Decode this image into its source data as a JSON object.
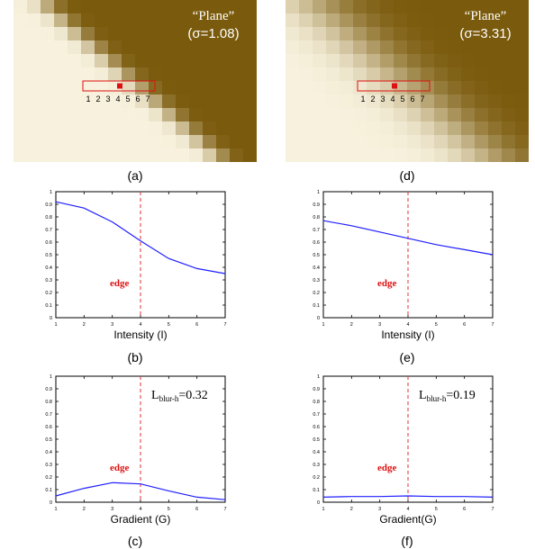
{
  "images": [
    {
      "id": "a",
      "caption": "(a)",
      "title_line1": "“Plane”",
      "title_line2": "(σ=1.08)",
      "sigma": 1.08,
      "roi_labels": [
        "1",
        "2",
        "3",
        "4",
        "5",
        "6",
        "7"
      ]
    },
    {
      "id": "d",
      "caption": "(d)",
      "title_line1": "“Plane”",
      "title_line2": "(σ=3.31)",
      "sigma": 3.31,
      "roi_labels": [
        "1",
        "2",
        "3",
        "4",
        "5",
        "6",
        "7"
      ]
    }
  ],
  "colors": {
    "dark": "#7a5a0c",
    "light": "#f7f1dd",
    "line": "#1f1fff",
    "edge_line": "#e03030",
    "roi": "#dd1111",
    "annotation": "#dd1111"
  },
  "chart_data": [
    {
      "id": "b",
      "type": "line",
      "caption": "(b)",
      "xlabel": "Intensity (I)",
      "x": [
        1,
        2,
        3,
        4,
        5,
        6,
        7
      ],
      "series": [
        {
          "values": [
            0.92,
            0.87,
            0.76,
            0.61,
            0.47,
            0.39,
            0.35
          ]
        }
      ],
      "xlim": [
        1,
        7
      ],
      "ylim": [
        0,
        1
      ],
      "xticks": [
        "1",
        "2",
        "3",
        "4",
        "5",
        "6",
        "7"
      ],
      "yticks": [
        "0",
        "0.1",
        "0.2",
        "0.3",
        "0.4",
        "0.5",
        "0.6",
        "0.7",
        "0.8",
        "0.9",
        "1"
      ],
      "edge_x": 4,
      "edge_label": "edge",
      "annotation": null
    },
    {
      "id": "e",
      "type": "line",
      "caption": "(e)",
      "xlabel": "Intensity (I)",
      "x": [
        1,
        2,
        3,
        4,
        5,
        6,
        7
      ],
      "series": [
        {
          "values": [
            0.77,
            0.73,
            0.68,
            0.63,
            0.58,
            0.54,
            0.5
          ]
        }
      ],
      "xlim": [
        1,
        7
      ],
      "ylim": [
        0,
        1
      ],
      "xticks": [
        "1",
        "2",
        "3",
        "4",
        "5",
        "6",
        "7"
      ],
      "yticks": [
        "0",
        "0.1",
        "0.2",
        "0.3",
        "0.4",
        "0.5",
        "0.6",
        "0.7",
        "0.8",
        "0.9",
        "1"
      ],
      "edge_x": 4,
      "edge_label": "edge",
      "annotation": null
    },
    {
      "id": "c",
      "type": "line",
      "caption": "(c)",
      "xlabel": "Gradient (G)",
      "x": [
        1,
        2,
        3,
        4,
        5,
        6,
        7
      ],
      "series": [
        {
          "values": [
            0.05,
            0.11,
            0.155,
            0.145,
            0.09,
            0.04,
            0.02
          ]
        }
      ],
      "xlim": [
        1,
        7
      ],
      "ylim": [
        0,
        1
      ],
      "xticks": [
        "1",
        "2",
        "3",
        "4",
        "5",
        "6",
        "7"
      ],
      "yticks": [
        "0",
        "0.1",
        "0.2",
        "0.3",
        "0.4",
        "0.5",
        "0.6",
        "0.7",
        "0.8",
        "0.9",
        "1"
      ],
      "edge_x": 4,
      "edge_label": "edge",
      "annotation": {
        "main": "L",
        "sub": "blur-h",
        "value": "=0.32"
      }
    },
    {
      "id": "f",
      "type": "line",
      "caption": "(f)",
      "xlabel": "Gradient(G)",
      "x": [
        1,
        2,
        3,
        4,
        5,
        6,
        7
      ],
      "series": [
        {
          "values": [
            0.04,
            0.045,
            0.045,
            0.05,
            0.045,
            0.045,
            0.04
          ]
        }
      ],
      "xlim": [
        1,
        7
      ],
      "ylim": [
        0,
        1
      ],
      "xticks": [
        "1",
        "2",
        "3",
        "4",
        "5",
        "6",
        "7"
      ],
      "yticks": [
        "0",
        "0.1",
        "0.2",
        "0.3",
        "0.4",
        "0.5",
        "0.6",
        "0.7",
        "0.8",
        "0.9",
        "1"
      ],
      "edge_x": 4,
      "edge_label": "edge",
      "annotation": {
        "main": "L",
        "sub": "blur-h",
        "value": "=0.19"
      }
    }
  ]
}
